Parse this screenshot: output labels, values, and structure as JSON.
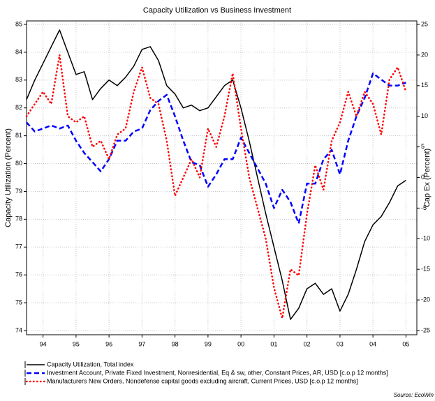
{
  "chart_data": {
    "type": "line",
    "title": "Capacity Utilization vs Business Investment",
    "y_label": "Capacity Utilization (Percent)",
    "y2_label": "Cap Ex (Percent)",
    "source": "Source: EcoWin",
    "x": [
      1994.0,
      1994.25,
      1994.5,
      1994.75,
      1995.0,
      1995.25,
      1995.5,
      1995.75,
      1996.0,
      1996.25,
      1996.5,
      1996.75,
      1997.0,
      1997.25,
      1997.5,
      1997.75,
      1998.0,
      1998.25,
      1998.5,
      1998.75,
      1999.0,
      1999.25,
      1999.5,
      1999.75,
      2000.0,
      2000.25,
      2000.5,
      2000.75,
      2001.0,
      2001.25,
      2001.5,
      2001.75,
      2002.0,
      2002.25,
      2002.5,
      2002.75,
      2003.0,
      2003.25,
      2003.5,
      2003.75,
      2004.0,
      2004.25,
      2004.5,
      2004.75,
      2005.0,
      2005.25,
      2005.5
    ],
    "series": [
      {
        "name": "Capacity Utilization, Total index",
        "color": "#000000",
        "style": "solid",
        "axis": "y",
        "values": [
          82.3,
          83.0,
          83.6,
          84.2,
          84.8,
          84.0,
          83.2,
          83.3,
          82.3,
          82.7,
          83.0,
          82.8,
          83.1,
          83.5,
          84.1,
          84.2,
          83.7,
          82.8,
          82.5,
          82.0,
          82.1,
          81.9,
          82.0,
          82.4,
          82.8,
          83.0,
          82.0,
          80.8,
          79.5,
          78.2,
          77.0,
          75.8,
          74.4,
          74.8,
          75.5,
          75.7,
          75.3,
          75.5,
          74.7,
          75.3,
          76.2,
          77.2,
          77.8,
          78.1,
          78.6,
          79.2,
          79.4
        ]
      },
      {
        "name": "Investment Account, Private Fixed Investment, Nonresidential, Eq & sw, other, Constant Prices, AR, USD [c.o.p 12 months]",
        "color": "#0000ff",
        "style": "dashed",
        "axis": "y2",
        "values": [
          9,
          7.5,
          8,
          8.5,
          8,
          8.5,
          6,
          4,
          2.5,
          1,
          3,
          6,
          6,
          7.5,
          8,
          11,
          12.5,
          13.5,
          10,
          6,
          2.5,
          2,
          -1.5,
          0.5,
          3,
          3,
          6.5,
          4,
          1.5,
          -1,
          -5,
          -2,
          -4,
          -7.5,
          -1,
          -1,
          3,
          4.5,
          0.5,
          6,
          10,
          13,
          17,
          16,
          15,
          15,
          15.5
        ]
      },
      {
        "name": "Manufacturers New Orders, Nondefense capital goods excluding aircraft, Current Prices, USD [c.o.p 12 months]",
        "color": "#ff0000",
        "style": "dotted",
        "axis": "y2",
        "values": [
          10,
          12,
          14,
          12,
          20,
          10,
          9,
          10,
          5,
          6,
          3,
          7,
          8,
          14,
          18,
          13,
          12,
          6,
          -3,
          0,
          3,
          0,
          8,
          5,
          10,
          17,
          8,
          0,
          -5,
          -10,
          -18,
          -23,
          -15,
          -16,
          -6,
          2,
          -2,
          6,
          9,
          14,
          10,
          14,
          12,
          7,
          16,
          18,
          14
        ]
      }
    ],
    "xlim": [
      1994,
      2005.83
    ],
    "xticks": [
      {
        "value": 1994.5,
        "label": "94"
      },
      {
        "value": 1995.5,
        "label": "95"
      },
      {
        "value": 1996.5,
        "label": "96"
      },
      {
        "value": 1997.5,
        "label": "97"
      },
      {
        "value": 1998.5,
        "label": "98"
      },
      {
        "value": 1999.5,
        "label": "99"
      },
      {
        "value": 2000.5,
        "label": "00"
      },
      {
        "value": 2001.5,
        "label": "01"
      },
      {
        "value": 2002.5,
        "label": "02"
      },
      {
        "value": 2003.5,
        "label": "03"
      },
      {
        "value": 2004.5,
        "label": "04"
      },
      {
        "value": 2005.5,
        "label": "05"
      }
    ],
    "ylim": [
      74,
      85
    ],
    "yticks": [
      74,
      75,
      76,
      77,
      78,
      79,
      80,
      81,
      82,
      83,
      84,
      85
    ],
    "y2lim": [
      -25,
      25
    ],
    "y2ticks": [
      -25,
      -20,
      -15,
      -10,
      -5,
      0,
      5,
      10,
      15,
      20,
      25
    ],
    "grid": true
  }
}
